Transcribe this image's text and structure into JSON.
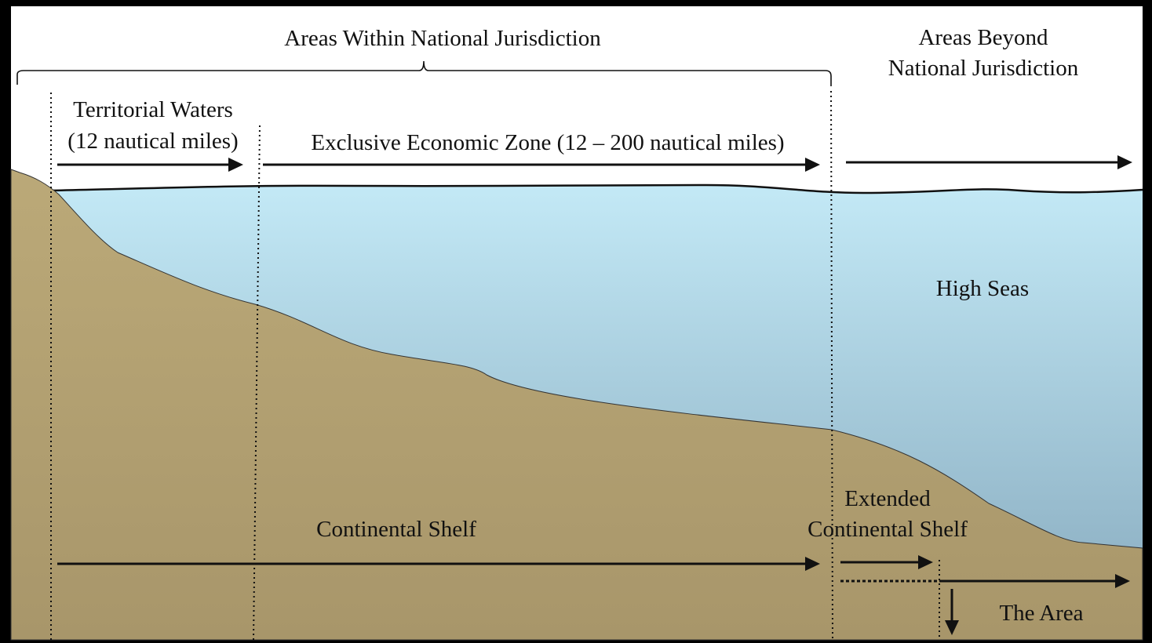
{
  "headings": {
    "within": "Areas Within National Jurisdiction",
    "beyond_line1": "Areas Beyond",
    "beyond_line2": "National Jurisdiction"
  },
  "zones": {
    "territorial_line1": "Territorial Waters",
    "territorial_line2": "(12 nautical miles)",
    "eez": "Exclusive Economic Zone (12 – 200 nautical miles)",
    "high_seas": "High Seas"
  },
  "seabed": {
    "continental_shelf": "Continental Shelf",
    "extended_line1": "Extended",
    "extended_line2": "Continental Shelf",
    "the_area": "The Area"
  },
  "colors": {
    "frame": "#000000",
    "sky": "#ffffff",
    "water_top": "#c3e9f6",
    "water_bottom": "#86a9bd",
    "land_top": "#bba978",
    "land_bottom": "#a8966a",
    "ink": "#111111"
  }
}
